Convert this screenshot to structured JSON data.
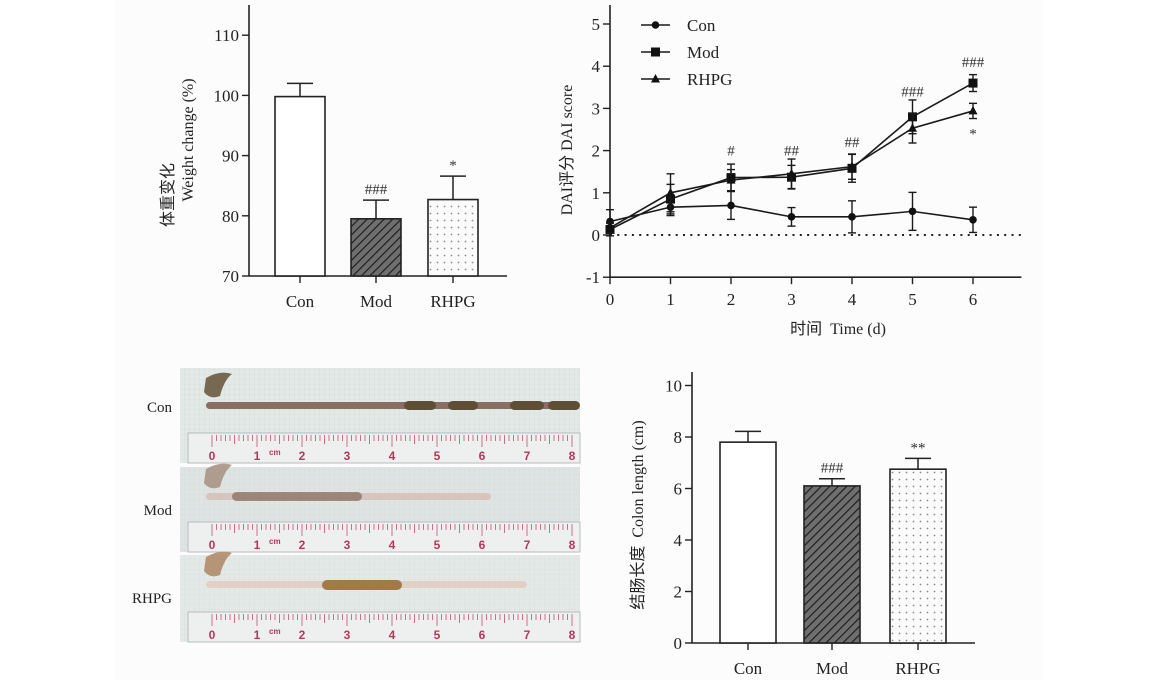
{
  "chart_data": [
    {
      "type": "bar",
      "id": "weight",
      "title": "",
      "ylabel_cn": "体重变化",
      "ylabel": "Weight change (%)",
      "xlabel": "",
      "categories": [
        "Con",
        "Mod",
        "RHPG"
      ],
      "values": [
        99.8,
        79.5,
        82.7
      ],
      "error": [
        2.2,
        3.1,
        3.9
      ],
      "annotations": [
        "",
        "###",
        "*"
      ],
      "fills": [
        "white",
        "hatch",
        "dots"
      ],
      "ylim": [
        70,
        115
      ],
      "yticks": [
        70,
        80,
        90,
        100,
        110
      ],
      "grid": false
    },
    {
      "type": "line",
      "id": "dai",
      "title": "",
      "ylabel": "DAI评分 DAI score",
      "xlabel": "时间  Time (d)",
      "x": [
        0,
        1,
        2,
        3,
        4,
        5,
        6
      ],
      "xlim": [
        0,
        6.8
      ],
      "ylim": [
        -1,
        5.4
      ],
      "yticks": [
        -1,
        0,
        1,
        2,
        3,
        4,
        5
      ],
      "xticks": [
        0,
        1,
        2,
        3,
        4,
        5,
        6
      ],
      "reference_line": 0,
      "legend_position": "top-left",
      "series": [
        {
          "name": "Con",
          "marker": "circle",
          "values": [
            0.32,
            0.66,
            0.7,
            0.43,
            0.43,
            0.56,
            0.36
          ],
          "error": [
            0.28,
            0.2,
            0.33,
            0.22,
            0.38,
            0.45,
            0.3
          ]
        },
        {
          "name": "Mod",
          "marker": "square",
          "values": [
            0.13,
            0.85,
            1.36,
            1.37,
            1.58,
            2.8,
            3.6
          ],
          "error": [
            0.15,
            0.35,
            0.32,
            0.28,
            0.33,
            0.4,
            0.2
          ]
        },
        {
          "name": "RHPG",
          "marker": "triangle",
          "values": [
            0.17,
            1.0,
            1.3,
            1.45,
            1.62,
            2.53,
            2.94
          ],
          "error": [
            0.12,
            0.45,
            0.25,
            0.35,
            0.3,
            0.35,
            0.18
          ]
        }
      ],
      "annotations": [
        {
          "x": 2,
          "text": "#",
          "y": 2.0
        },
        {
          "x": 3,
          "text": "##",
          "y": 2.0
        },
        {
          "x": 4,
          "text": "##",
          "y": 2.2
        },
        {
          "x": 5,
          "text": "###",
          "y": 3.4
        },
        {
          "x": 6,
          "text": "###",
          "y": 4.1
        },
        {
          "x": 6,
          "text": "*",
          "y": 2.4
        }
      ]
    },
    {
      "type": "bar",
      "id": "colon",
      "title": "",
      "ylabel": "结肠长度  Colon length (cm)",
      "xlabel": "",
      "categories": [
        "Con",
        "Mod",
        "RHPG"
      ],
      "values": [
        7.8,
        6.1,
        6.75
      ],
      "error": [
        0.42,
        0.28,
        0.42
      ],
      "annotations": [
        "",
        "###",
        "**"
      ],
      "fills": [
        "white",
        "hatch",
        "dots"
      ],
      "ylim": [
        0,
        10.5
      ],
      "yticks": [
        0,
        2,
        4,
        6,
        8,
        10
      ],
      "grid": false
    }
  ],
  "photos": {
    "labels": [
      "Con",
      "Mod",
      "RHPG"
    ],
    "ruler_numbers": [
      "0",
      "1",
      "2",
      "3",
      "4",
      "5",
      "6",
      "7",
      "8"
    ],
    "ruler_unit": "cm",
    "colon_lengths_cm": [
      8.0,
      6.2,
      7.0
    ]
  }
}
